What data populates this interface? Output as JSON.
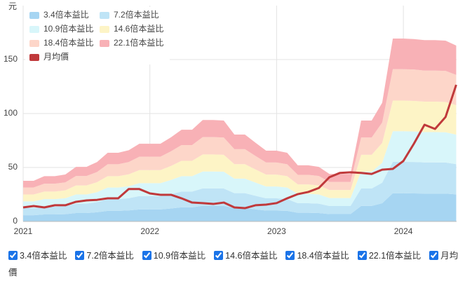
{
  "chart_data": {
    "type": "area",
    "y_label": "元",
    "x": [
      2021,
      2021.083,
      2021.167,
      2021.25,
      2021.333,
      2021.417,
      2021.5,
      2021.583,
      2021.667,
      2021.75,
      2021.833,
      2021.917,
      2022,
      2022.083,
      2022.167,
      2022.25,
      2022.333,
      2022.417,
      2022.5,
      2022.583,
      2022.667,
      2022.75,
      2022.833,
      2022.917,
      2023,
      2023.083,
      2023.167,
      2023.25,
      2023.333,
      2023.417,
      2023.5,
      2023.583,
      2023.667,
      2023.75,
      2023.833,
      2023.917,
      2024,
      2024.083,
      2024.167,
      2024.25,
      2024.333,
      2024.417
    ],
    "xlim": [
      2021,
      2024.42
    ],
    "xticks": [
      2021,
      2022,
      2023,
      2024
    ],
    "ylim": [
      0,
      200
    ],
    "yticks": [
      0,
      50,
      100,
      150
    ],
    "grid": true,
    "series": [
      {
        "name": "3.4倍本益比",
        "type": "area",
        "color": "#a6d5f2",
        "values": [
          5.8,
          5.8,
          6.5,
          6.5,
          6.7,
          7.8,
          7.8,
          8.5,
          9.8,
          9.8,
          10.2,
          11.1,
          11.1,
          11.1,
          12.0,
          13.1,
          13.1,
          14.5,
          14.5,
          14.4,
          12.4,
          12.4,
          11.2,
          10.1,
          10.1,
          9.8,
          8.0,
          8.0,
          7.8,
          6.8,
          6.8,
          6.8,
          14.4,
          14.4,
          16.9,
          26.1,
          26.1,
          26.0,
          25.8,
          25.8,
          25.8,
          25.1
        ]
      },
      {
        "name": "7.2倍本益比",
        "type": "area",
        "color": "#bfe4f6",
        "values": [
          12.3,
          12.3,
          13.7,
          13.7,
          14.2,
          16.5,
          16.5,
          17.9,
          20.7,
          20.7,
          21.5,
          23.5,
          23.5,
          23.5,
          25.4,
          27.7,
          27.7,
          30.6,
          30.6,
          30.5,
          26.2,
          26.2,
          23.8,
          21.4,
          21.4,
          20.7,
          16.9,
          16.9,
          16.5,
          14.3,
          14.3,
          14.3,
          30.5,
          30.5,
          35.9,
          55.2,
          55.2,
          55.1,
          54.7,
          54.7,
          54.6,
          53.1
        ]
      },
      {
        "name": "10.9倍本益比",
        "type": "area",
        "color": "#d8f6fa",
        "values": [
          18.6,
          18.6,
          20.7,
          20.7,
          21.5,
          25.0,
          25.0,
          27.1,
          31.4,
          31.4,
          32.6,
          35.5,
          35.5,
          35.5,
          38.5,
          42.0,
          42.0,
          46.3,
          46.3,
          46.1,
          39.7,
          39.7,
          36.0,
          32.4,
          32.4,
          31.4,
          25.6,
          25.6,
          25.0,
          21.7,
          21.7,
          21.7,
          46.1,
          46.1,
          54.3,
          83.6,
          83.6,
          83.4,
          82.8,
          82.8,
          82.6,
          80.4
        ]
      },
      {
        "name": "14.6倍本益比",
        "type": "area",
        "color": "#fdf4c6",
        "values": [
          25.0,
          25.0,
          27.7,
          27.7,
          28.8,
          33.4,
          33.4,
          36.4,
          42.0,
          42.0,
          43.7,
          47.6,
          47.6,
          47.6,
          51.5,
          56.2,
          56.2,
          62.1,
          62.1,
          61.8,
          53.1,
          53.1,
          48.2,
          43.4,
          43.4,
          42.0,
          34.3,
          34.3,
          33.4,
          29.1,
          29.1,
          29.1,
          61.8,
          61.8,
          72.7,
          112.0,
          112.0,
          111.7,
          111.0,
          111.0,
          110.7,
          107.7
        ]
      },
      {
        "name": "18.4倍本益比",
        "type": "area",
        "color": "#fdd6c9",
        "values": [
          31.5,
          31.5,
          35.0,
          35.0,
          36.2,
          42.1,
          42.1,
          45.8,
          53.0,
          53.0,
          55.0,
          60.0,
          60.0,
          60.0,
          65.0,
          70.8,
          70.8,
          78.2,
          78.2,
          77.8,
          67.0,
          67.0,
          60.7,
          54.6,
          54.6,
          53.0,
          43.2,
          43.2,
          42.1,
          36.6,
          36.6,
          36.6,
          77.8,
          77.8,
          91.6,
          141.1,
          141.1,
          140.8,
          139.8,
          139.8,
          139.5,
          135.8
        ]
      },
      {
        "name": "22.1倍本益比",
        "type": "area",
        "color": "#f8b1b6",
        "values": [
          37.7,
          37.7,
          42,
          42,
          43.5,
          50.6,
          50.6,
          55,
          63.6,
          63.6,
          66,
          72,
          72,
          72,
          78,
          85,
          85,
          94,
          94,
          93.5,
          80.5,
          80.5,
          73,
          65.6,
          65.6,
          63.6,
          52,
          52,
          50.6,
          44,
          44,
          44,
          93.5,
          93.5,
          110,
          169.5,
          169.5,
          169,
          168,
          168,
          167.5,
          163
        ]
      },
      {
        "name": "月均價",
        "type": "line",
        "color": "#c0393b",
        "values": [
          13,
          14.3,
          13,
          15,
          15,
          18.2,
          19.5,
          20,
          21.4,
          21.4,
          30,
          30,
          26,
          24.7,
          24.7,
          21.4,
          17.5,
          17,
          16.2,
          17.5,
          13,
          12.3,
          15,
          15.6,
          17,
          21.4,
          25.3,
          27.3,
          31,
          41,
          45,
          45.5,
          45,
          44,
          48,
          48.7,
          56,
          72,
          89.6,
          85.7,
          96.8,
          126.6
        ]
      }
    ]
  }
}
